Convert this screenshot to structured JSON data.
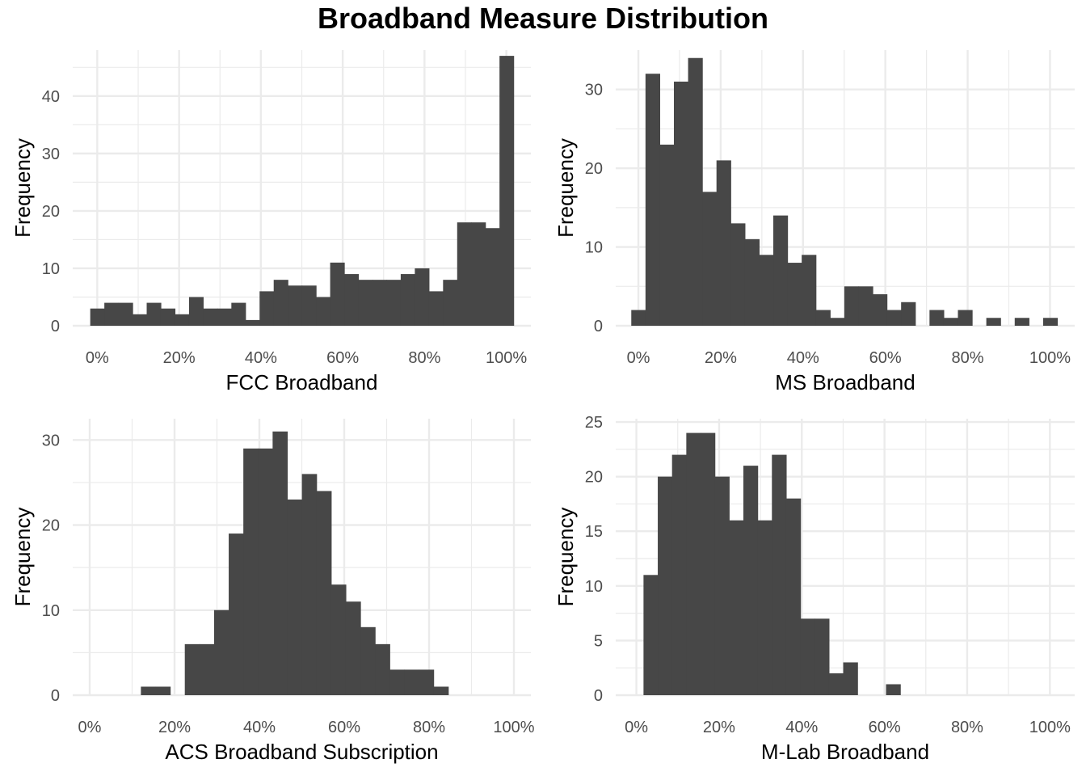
{
  "title": "Broadband Measure Distribution",
  "bar_color": "#474747",
  "grid_color": "#ebebeb",
  "chart_data": [
    {
      "type": "bar",
      "xlabel": "FCC Broadband",
      "ylabel": "Frequency",
      "x_ticks": [
        "0%",
        "20%",
        "40%",
        "60%",
        "80%",
        "100%"
      ],
      "y_ticks": [
        0,
        10,
        20,
        30,
        40
      ],
      "xlim": [
        -0.06,
        1.06
      ],
      "ylim": [
        0,
        48
      ],
      "bin_start": -0.0172,
      "bin_width": 0.0345,
      "values": [
        3,
        4,
        4,
        2,
        4,
        3,
        2,
        5,
        3,
        3,
        4,
        1,
        6,
        8,
        7,
        7,
        5,
        11,
        9,
        8,
        8,
        8,
        9,
        10,
        6,
        8,
        18,
        18,
        17,
        47
      ]
    },
    {
      "type": "bar",
      "xlabel": "MS Broadband",
      "ylabel": "Frequency",
      "x_ticks": [
        "0%",
        "20%",
        "40%",
        "60%",
        "80%",
        "100%"
      ],
      "y_ticks": [
        0,
        10,
        20,
        30
      ],
      "xlim": [
        -0.055,
        1.06
      ],
      "ylim": [
        0,
        35
      ],
      "bin_start": -0.0172,
      "bin_width": 0.0345,
      "values": [
        2,
        32,
        23,
        31,
        34,
        17,
        21,
        13,
        11,
        9,
        14,
        8,
        9,
        2,
        1,
        5,
        5,
        4,
        2,
        3,
        0,
        2,
        1,
        2,
        0,
        1,
        0,
        1,
        0,
        1
      ]
    },
    {
      "type": "bar",
      "xlabel": "ACS Broadband Subscription",
      "ylabel": "Frequency",
      "x_ticks": [
        "0%",
        "20%",
        "40%",
        "60%",
        "80%",
        "100%"
      ],
      "y_ticks": [
        0,
        10,
        20,
        30
      ],
      "xlim": [
        -0.04,
        1.04
      ],
      "ylim": [
        0,
        32.5
      ],
      "bin_start": 0.1207,
      "bin_width": 0.0345,
      "values": [
        1,
        1,
        0,
        6,
        6,
        10,
        19,
        29,
        29,
        31,
        23,
        26,
        24,
        13,
        11,
        8,
        6,
        3,
        3,
        3,
        1
      ]
    },
    {
      "type": "bar",
      "xlabel": "M-Lab Broadband",
      "ylabel": "Frequency",
      "x_ticks": [
        "0%",
        "20%",
        "40%",
        "60%",
        "80%",
        "100%"
      ],
      "y_ticks": [
        0,
        5,
        10,
        15,
        20,
        25
      ],
      "xlim": [
        -0.05,
        1.06
      ],
      "ylim": [
        0,
        25.3
      ],
      "bin_start": 0.0172,
      "bin_width": 0.0345,
      "values": [
        11,
        20,
        22,
        24,
        24,
        20,
        16,
        21,
        16,
        22,
        18,
        7,
        7,
        2,
        3,
        0,
        0,
        1
      ]
    }
  ]
}
